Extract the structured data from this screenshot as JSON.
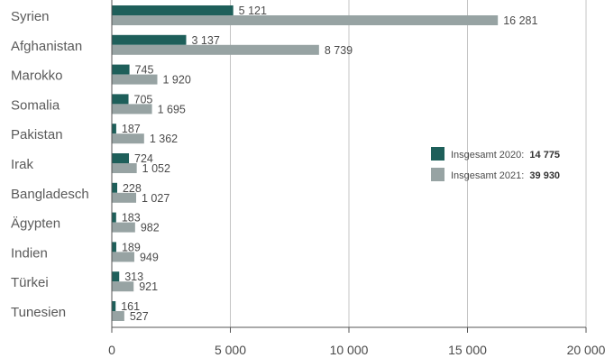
{
  "chart_data": {
    "type": "bar",
    "orientation": "horizontal",
    "categories": [
      "Syrien",
      "Afghanistan",
      "Marokko",
      "Somalia",
      "Pakistan",
      "Irak",
      "Bangladesch",
      "Ägypten",
      "Indien",
      "Türkei",
      "Tunesien"
    ],
    "series": [
      {
        "name": "Insgesamt 2020:",
        "total": "14 775",
        "color": "#1e5f5a",
        "values": [
          5121,
          3137,
          745,
          705,
          187,
          724,
          228,
          183,
          189,
          313,
          161
        ],
        "labels": [
          "5 121",
          "3 137",
          "745",
          "705",
          "187",
          "724",
          "228",
          "183",
          "189",
          "313",
          "161"
        ]
      },
      {
        "name": "Insgesamt 2021:",
        "total": "39 930",
        "color": "#97a3a3",
        "values": [
          16281,
          8739,
          1920,
          1695,
          1362,
          1052,
          1027,
          982,
          949,
          921,
          527
        ],
        "labels": [
          "16 281",
          "8 739",
          "1 920",
          "1 695",
          "1 362",
          "1 052",
          "1 027",
          "982",
          "949",
          "921",
          "527"
        ]
      }
    ],
    "xlim": [
      0,
      20000
    ],
    "xticks": [
      0,
      5000,
      10000,
      15000,
      20000
    ],
    "xtick_labels": [
      "0",
      "5 000",
      "10 000",
      "15 000",
      "20 000"
    ],
    "grid": "vertical",
    "legend_position": "right-middle",
    "axis_color": "#555555",
    "grid_color": "#c4c4c4"
  }
}
